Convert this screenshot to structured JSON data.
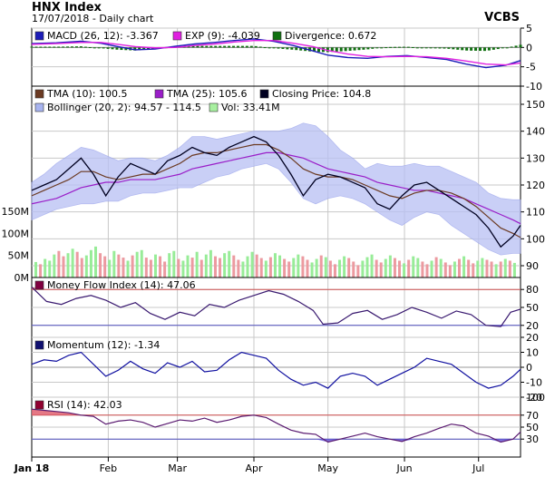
{
  "header": {
    "title": "HNX Index",
    "subtitle": "17/07/2018 - Daily chart",
    "brand": "VCBS"
  },
  "x_axis": {
    "ticks": [
      {
        "label": "Jan 18",
        "day": 0
      },
      {
        "label": "Feb",
        "day": 31
      },
      {
        "label": "Mar",
        "day": 59
      },
      {
        "label": "Apr",
        "day": 90
      },
      {
        "label": "May",
        "day": 120
      },
      {
        "label": "Jun",
        "day": 151
      },
      {
        "label": "Jul",
        "day": 181
      }
    ],
    "range_days": [
      0,
      198
    ]
  },
  "chart_data": [
    {
      "panel": "macd",
      "type": "line",
      "legend": [
        {
          "text": "MACD (26, 12): -3.367",
          "color": "#1c1cb8"
        },
        {
          "text": "EXP (9): -4.039",
          "color": "#e020e0"
        },
        {
          "text": "Divergence: 0.672",
          "color": "#107010"
        }
      ],
      "ylim": [
        -10,
        5
      ],
      "yticks": [
        5,
        0,
        -5,
        -10
      ],
      "x": [
        0,
        10,
        20,
        28,
        35,
        42,
        50,
        58,
        66,
        74,
        82,
        90,
        98,
        106,
        114,
        120,
        128,
        136,
        144,
        152,
        160,
        168,
        176,
        184,
        192,
        198
      ],
      "series": [
        {
          "name": "MACD (26, 12)",
          "color": "#1c1cb8",
          "values": [
            1.0,
            1.2,
            1.6,
            1.1,
            0.2,
            -0.6,
            -0.4,
            0.3,
            0.9,
            1.3,
            1.8,
            2.2,
            1.6,
            0.5,
            -0.9,
            -2.0,
            -2.6,
            -2.8,
            -2.3,
            -2.1,
            -2.6,
            -3.1,
            -4.3,
            -5.2,
            -4.6,
            -3.4
          ]
        },
        {
          "name": "EXP (9)",
          "color": "#e020e0",
          "values": [
            0.8,
            1.0,
            1.3,
            1.3,
            0.8,
            0.2,
            -0.1,
            0.0,
            0.5,
            0.9,
            1.4,
            1.8,
            1.8,
            1.1,
            0.2,
            -0.8,
            -1.7,
            -2.3,
            -2.4,
            -2.3,
            -2.4,
            -2.8,
            -3.5,
            -4.3,
            -4.5,
            -4.0
          ]
        },
        {
          "name": "Divergence",
          "color": "#107010",
          "values": [
            0.2,
            0.2,
            0.3,
            -0.2,
            -0.6,
            -0.8,
            -0.3,
            0.3,
            0.4,
            0.4,
            0.4,
            0.4,
            -0.2,
            -0.6,
            -1.1,
            -1.2,
            -0.9,
            -0.5,
            0.1,
            0.2,
            -0.2,
            -0.3,
            -0.8,
            -0.9,
            -0.1,
            0.7
          ]
        }
      ]
    },
    {
      "panel": "price",
      "type": "line",
      "legend": [
        {
          "text": "TMA (10): 100.5",
          "color": "#6b3a22"
        },
        {
          "text": "TMA (25): 105.6",
          "color": "#9a1ec8"
        },
        {
          "text": "Closing Price: 104.8",
          "color": "#000020"
        },
        {
          "text": "Bollinger (20, 2): 94.57 - 114.5",
          "color": "#a8b4f0"
        },
        {
          "text": "Vol: 33.41M",
          "color": "#a8f0a0"
        }
      ],
      "ylim": [
        90,
        150
      ],
      "yticks": [
        90,
        100,
        110,
        120,
        130,
        140,
        150
      ],
      "x": [
        0,
        5,
        10,
        15,
        20,
        25,
        30,
        35,
        40,
        45,
        50,
        55,
        60,
        65,
        70,
        75,
        80,
        85,
        90,
        95,
        100,
        105,
        110,
        115,
        120,
        125,
        130,
        135,
        140,
        145,
        150,
        155,
        160,
        165,
        170,
        175,
        180,
        185,
        190,
        195,
        198
      ],
      "series": [
        {
          "name": "Closing Price",
          "color": "#000020",
          "values": [
            118,
            120,
            122,
            126,
            130,
            124,
            116,
            123,
            128,
            126,
            124,
            129,
            131,
            134,
            132,
            131,
            134,
            136,
            138,
            136,
            131,
            124,
            116,
            122,
            124,
            123,
            121,
            119,
            113,
            111,
            116,
            120,
            121,
            118,
            115,
            112,
            109,
            104,
            97,
            101,
            105
          ]
        },
        {
          "name": "TMA (10)",
          "color": "#6b3a22",
          "values": [
            116,
            118,
            120,
            122,
            125,
            125,
            123,
            122,
            123,
            124,
            124,
            126,
            128,
            131,
            132,
            132,
            133,
            134,
            135,
            135,
            133,
            130,
            126,
            124,
            123,
            123,
            122,
            120,
            118,
            116,
            115,
            117,
            118,
            118,
            117,
            115,
            112,
            108,
            104,
            102,
            100.5
          ]
        },
        {
          "name": "TMA (25)",
          "color": "#9a1ec8",
          "values": [
            113,
            114,
            115,
            117,
            119,
            120,
            121,
            121,
            122,
            122,
            122,
            123,
            124,
            126,
            127,
            128,
            129,
            130,
            131,
            132,
            132,
            131,
            130,
            128,
            126,
            125,
            124,
            123,
            121,
            120,
            119,
            118,
            118,
            117,
            116,
            115,
            113,
            111,
            109,
            107,
            105.6
          ]
        },
        {
          "name": "Bollinger upper",
          "color": "#a8b4f0",
          "values": [
            121,
            124,
            128,
            131,
            134,
            133,
            131,
            129,
            130,
            130,
            129,
            131,
            134,
            138,
            138,
            137,
            138,
            139,
            140,
            140,
            140,
            141,
            143,
            142,
            138,
            133,
            130,
            126,
            128,
            127,
            127,
            128,
            127,
            127,
            125,
            123,
            121,
            117,
            115,
            114.5,
            114.5
          ]
        },
        {
          "name": "Bollinger lower",
          "color": "#a8b4f0",
          "values": [
            107,
            109,
            111,
            112,
            113,
            113,
            114,
            114,
            116,
            117,
            117,
            118,
            119,
            119,
            121,
            123,
            124,
            126,
            127,
            128,
            126,
            121,
            115,
            113,
            115,
            116,
            115,
            113,
            110,
            107,
            105,
            108,
            110,
            109,
            105,
            102,
            99,
            96,
            94,
            94.6,
            94.6
          ]
        }
      ],
      "volume": {
        "label": "Vol",
        "yticks": [
          {
            "label": "150M",
            "value": 150
          },
          {
            "label": "100M",
            "value": 100
          },
          {
            "label": "50M",
            "value": 50
          },
          {
            "label": "0M",
            "value": 0
          }
        ],
        "values": [
          35,
          30,
          42,
          38,
          52,
          60,
          48,
          55,
          65,
          58,
          44,
          50,
          62,
          70,
          55,
          48,
          40,
          60,
          52,
          45,
          38,
          50,
          58,
          62,
          45,
          40,
          52,
          48,
          36,
          55,
          60,
          42,
          38,
          50,
          45,
          58,
          40,
          52,
          62,
          48,
          44,
          55,
          60,
          50,
          40,
          36,
          48,
          58,
          52,
          44,
          38,
          46,
          55,
          50,
          42,
          36,
          44,
          52,
          48,
          40,
          34,
          42,
          50,
          46,
          38,
          30,
          40,
          48,
          44,
          36,
          28,
          38,
          46,
          52,
          40,
          34,
          42,
          50,
          44,
          38,
          32,
          40,
          48,
          44,
          36,
          30,
          38,
          46,
          42,
          34,
          28,
          36,
          42,
          48,
          40,
          32,
          38,
          44,
          40,
          36,
          30,
          36,
          42,
          38,
          33
        ],
        "up": [
          1,
          0,
          1,
          1,
          1,
          0,
          0,
          1,
          1,
          0,
          0,
          1,
          1,
          1,
          0,
          0,
          1,
          1,
          0,
          0,
          1,
          0,
          1,
          1,
          0,
          0,
          1,
          0,
          0,
          1,
          1,
          0,
          1,
          1,
          0,
          1,
          0,
          1,
          1,
          0,
          0,
          1,
          1,
          0,
          0,
          1,
          1,
          1,
          0,
          0,
          1,
          0,
          1,
          1,
          0,
          0,
          1,
          1,
          0,
          0,
          1,
          1,
          0,
          1,
          0,
          0,
          1,
          1,
          0,
          0,
          0,
          1,
          1,
          1,
          0,
          0,
          1,
          1,
          0,
          0,
          1,
          0,
          1,
          1,
          0,
          0,
          1,
          0,
          1,
          0,
          0,
          1,
          0,
          1,
          0,
          0,
          1,
          1,
          0,
          0,
          1,
          0,
          1,
          0,
          1
        ]
      }
    },
    {
      "panel": "mfi",
      "type": "line",
      "legend": [
        {
          "text": "Money Flow Index (14): 47.06",
          "color": "#800040"
        }
      ],
      "ylim": [
        0,
        100
      ],
      "yticks": [
        80,
        50,
        20
      ],
      "bands": [
        80,
        20
      ],
      "x": [
        0,
        6,
        12,
        18,
        24,
        30,
        36,
        42,
        48,
        54,
        60,
        66,
        72,
        78,
        84,
        90,
        96,
        102,
        108,
        114,
        118,
        124,
        130,
        136,
        142,
        148,
        154,
        160,
        166,
        172,
        178,
        184,
        190,
        194,
        198
      ],
      "series": [
        {
          "name": "Money Flow Index (14)",
          "color": "#3a1a70",
          "values": [
            84,
            60,
            55,
            65,
            70,
            62,
            50,
            58,
            40,
            30,
            42,
            36,
            55,
            50,
            62,
            70,
            78,
            72,
            60,
            45,
            22,
            24,
            40,
            45,
            30,
            38,
            50,
            42,
            32,
            44,
            38,
            20,
            18,
            42,
            47
          ]
        }
      ]
    },
    {
      "panel": "momentum",
      "type": "line",
      "legend": [
        {
          "text": "Momentum (12): -1.34",
          "color": "#101070"
        }
      ],
      "ylim": [
        -20,
        20
      ],
      "yticks": [
        20,
        10,
        0,
        -10,
        -20
      ],
      "x": [
        0,
        5,
        10,
        15,
        20,
        25,
        30,
        35,
        40,
        45,
        50,
        55,
        60,
        65,
        70,
        75,
        80,
        85,
        90,
        95,
        100,
        105,
        110,
        115,
        120,
        125,
        130,
        135,
        140,
        145,
        150,
        155,
        160,
        165,
        170,
        175,
        180,
        185,
        190,
        195,
        198
      ],
      "series": [
        {
          "name": "Momentum (12)",
          "color": "#1010a0",
          "values": [
            2,
            5,
            4,
            8,
            10,
            2,
            -6,
            -2,
            4,
            -1,
            -4,
            3,
            0,
            4,
            -3,
            -2,
            5,
            10,
            8,
            6,
            -2,
            -8,
            -12,
            -10,
            -14,
            -6,
            -4,
            -6,
            -12,
            -8,
            -4,
            0,
            6,
            4,
            2,
            -4,
            -10,
            -14,
            -12,
            -6,
            -1.34
          ]
        }
      ]
    },
    {
      "panel": "rsi",
      "type": "line",
      "legend": [
        {
          "text": "RSI (14): 42.03",
          "color": "#900030"
        }
      ],
      "ylim": [
        0,
        100
      ],
      "yticks": [
        100,
        70,
        50,
        30
      ],
      "bands": [
        70,
        30
      ],
      "x": [
        0,
        5,
        10,
        15,
        20,
        25,
        30,
        35,
        40,
        45,
        50,
        55,
        60,
        65,
        70,
        75,
        80,
        85,
        90,
        95,
        100,
        105,
        110,
        115,
        120,
        125,
        130,
        135,
        140,
        145,
        150,
        155,
        160,
        165,
        170,
        175,
        180,
        185,
        190,
        195,
        198
      ],
      "series": [
        {
          "name": "RSI (14)",
          "color": "#5a1a70",
          "values": [
            80,
            78,
            76,
            74,
            70,
            68,
            55,
            60,
            62,
            58,
            50,
            56,
            62,
            60,
            65,
            58,
            62,
            68,
            70,
            66,
            55,
            45,
            40,
            38,
            25,
            30,
            35,
            40,
            34,
            30,
            26,
            34,
            40,
            48,
            55,
            52,
            40,
            35,
            25,
            30,
            42.03
          ]
        }
      ]
    }
  ]
}
